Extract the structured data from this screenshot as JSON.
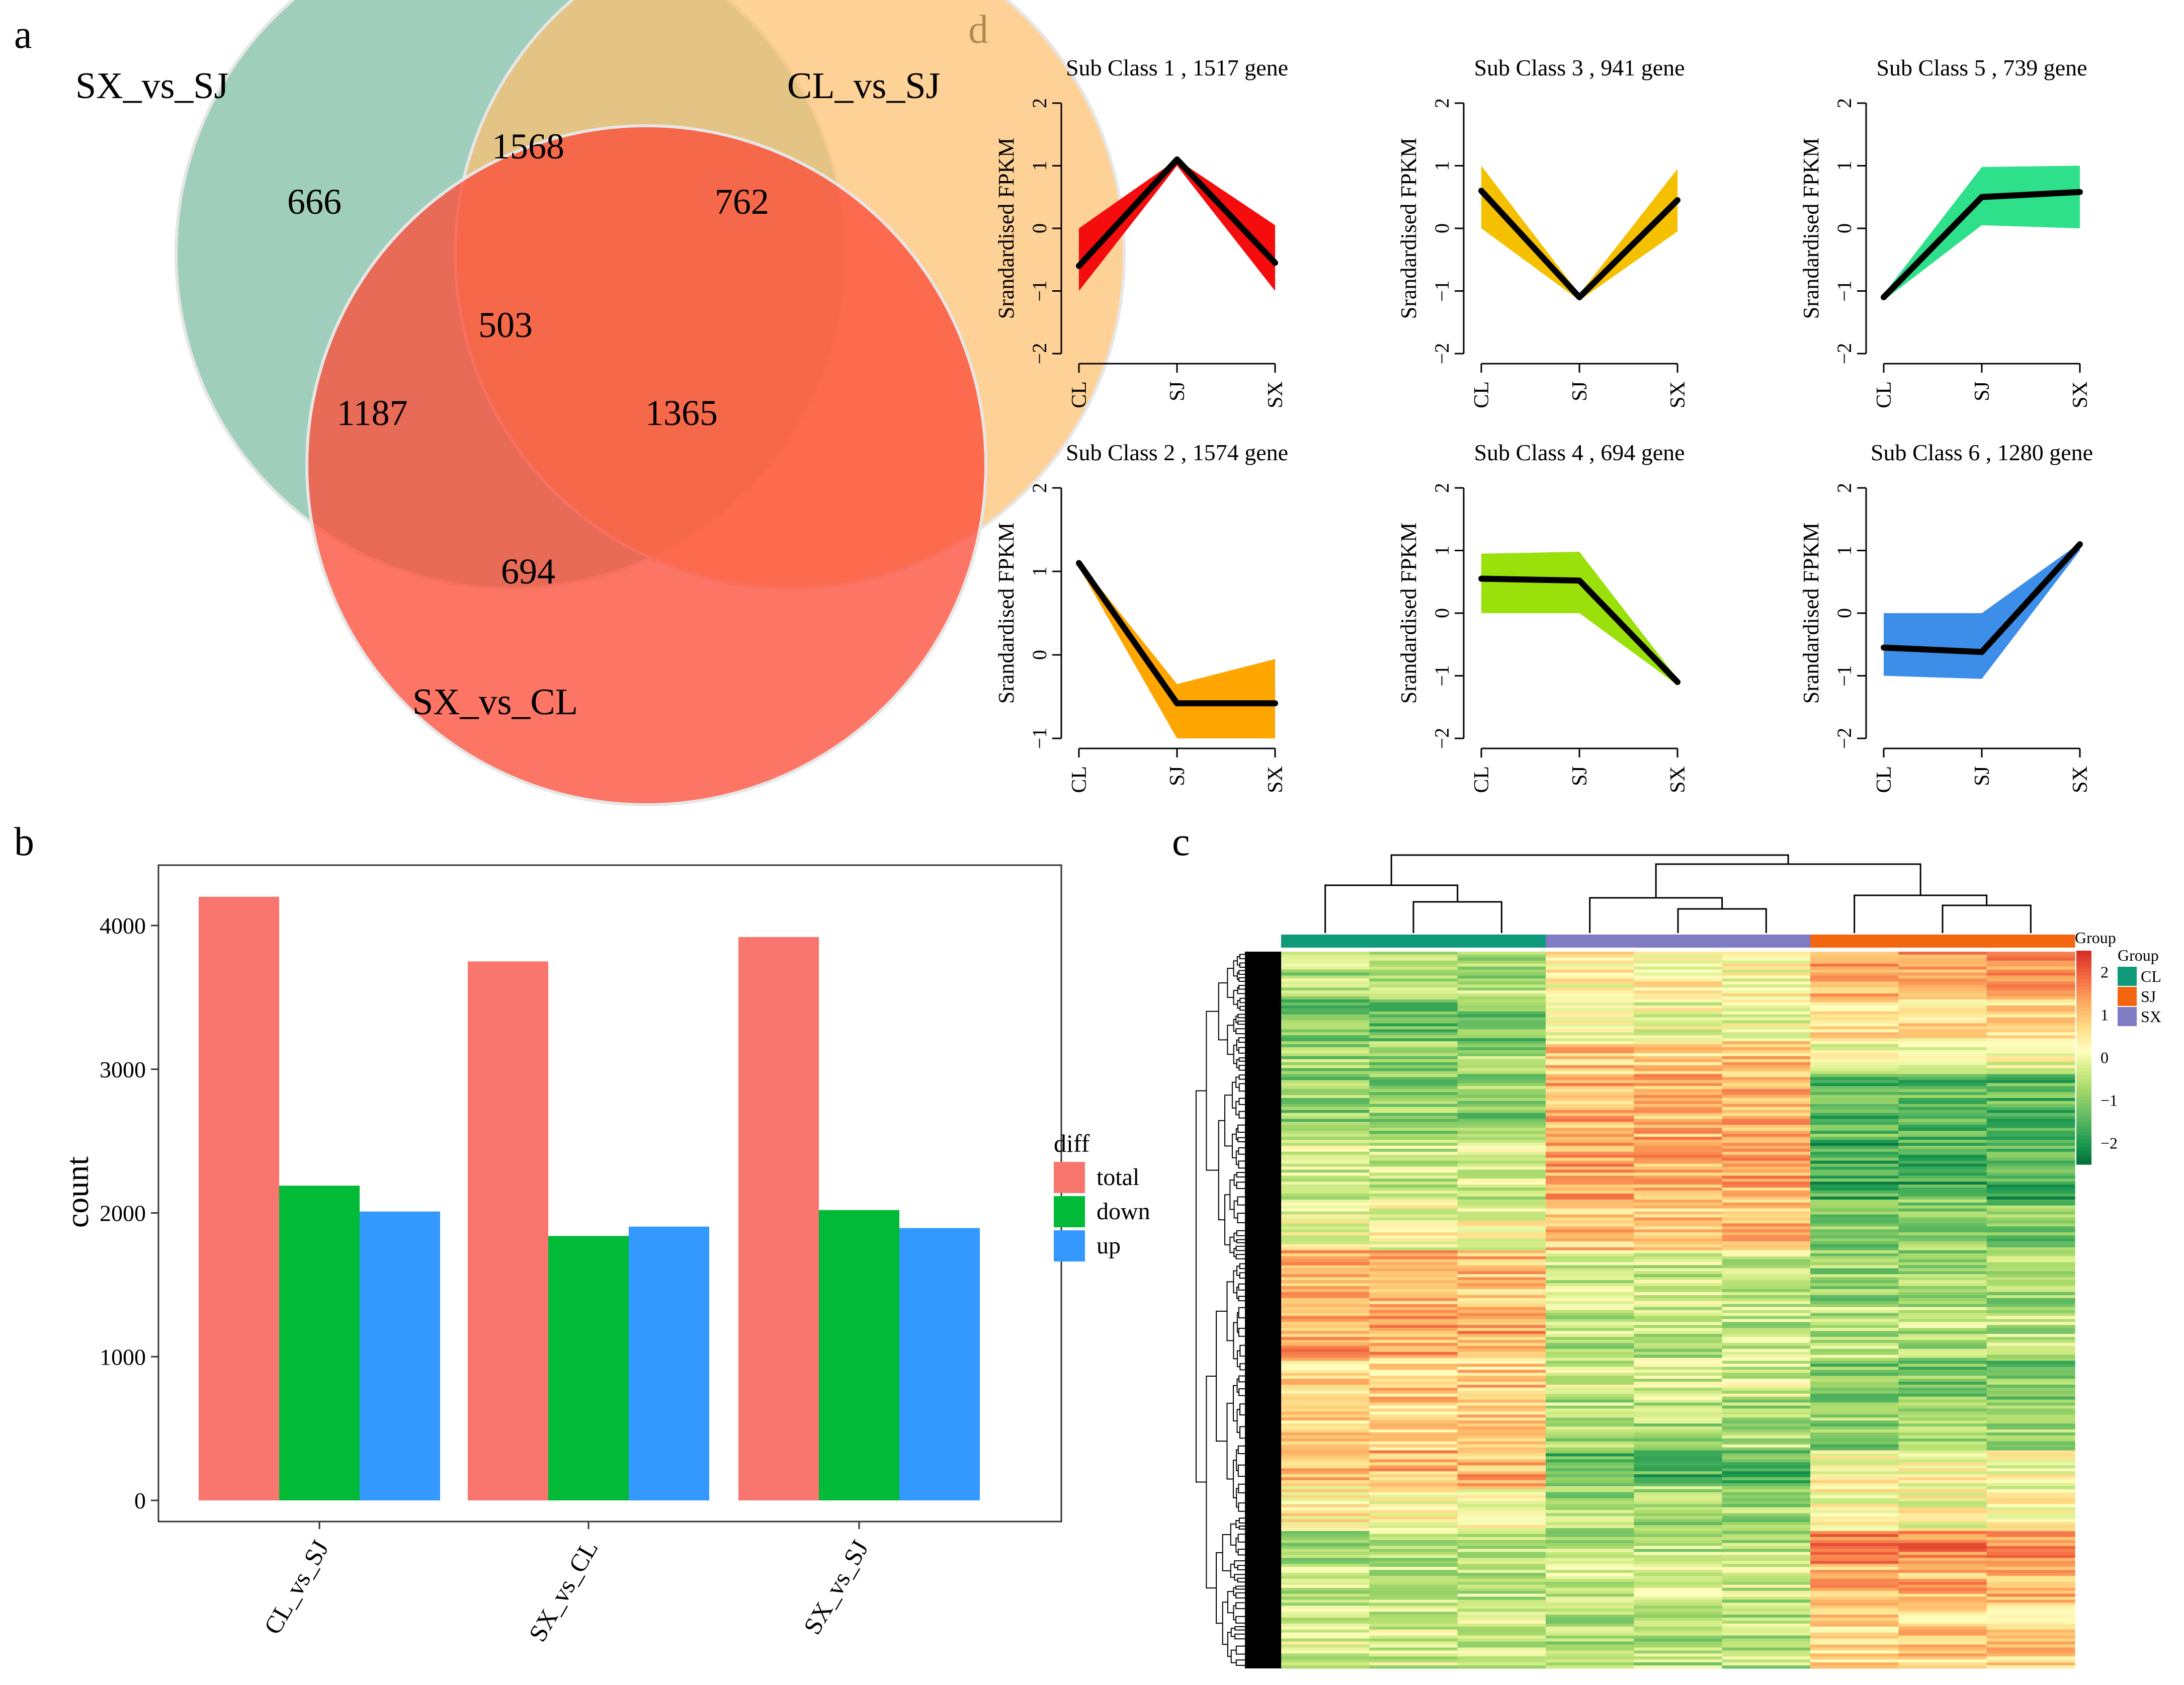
{
  "panel_labels": {
    "a": "a",
    "b": "b",
    "c": "c",
    "d": "d"
  },
  "colors": {
    "venn_sx_sj": "#7fbfa6",
    "venn_cl_sj": "#fdbf6f",
    "venn_sx_cl": "#fb5a46",
    "total": "#f8766d",
    "down": "#00ba38",
    "up": "#3399ff",
    "group_cl": "#0f9b79",
    "group_sj": "#f2660f",
    "group_sx": "#7f7cc4"
  },
  "chart_data": [
    {
      "type": "venn",
      "panel": "a",
      "sets": [
        "SX_vs_SJ",
        "CL_vs_SJ",
        "SX_vs_CL"
      ],
      "regions": {
        "only_SX_vs_SJ": "666",
        "only_CL_vs_SJ": "762",
        "only_SX_vs_CL": "694",
        "SX_vs_SJ_and_CL_vs_SJ": "1568",
        "SX_vs_SJ_and_SX_vs_CL": "1187",
        "CL_vs_SJ_and_SX_vs_CL": "1365",
        "all_three": "503"
      }
    },
    {
      "type": "bar",
      "panel": "b",
      "categories": [
        "CL_vs_SJ",
        "SX_vs_CL",
        "SX_vs_SJ"
      ],
      "series": [
        {
          "name": "total",
          "values": [
            4200,
            3750,
            3920
          ]
        },
        {
          "name": "down",
          "values": [
            2190,
            1840,
            2020
          ]
        },
        {
          "name": "up",
          "values": [
            2010,
            1905,
            1895
          ]
        }
      ],
      "ylabel": "count",
      "ylim": [
        0,
        4400
      ],
      "yticks": [
        0,
        1000,
        2000,
        3000,
        4000
      ],
      "legend_title": "diff",
      "legend_position": "right"
    },
    {
      "type": "heatmap",
      "panel": "c",
      "column_groups": [
        "CL",
        "CL",
        "CL",
        "SX",
        "SX",
        "SX",
        "SJ",
        "SJ",
        "SJ"
      ],
      "legend_title": "Group",
      "legend_title_top": "Group",
      "group_legend": [
        "CL",
        "SJ",
        "SX"
      ],
      "color_scale_ticks": [
        "2",
        "1",
        "0",
        "−1",
        "−2"
      ],
      "color_range": [
        -2.5,
        2.5
      ]
    },
    {
      "type": "line",
      "panel": "d",
      "x": [
        "CL",
        "SJ",
        "SX"
      ],
      "ylabel": "Srandardised FPKM",
      "subplots": [
        {
          "title": "Sub Class  1  , 1517 gene",
          "ylim": [
            -2,
            2
          ],
          "yticks": [
            "−2",
            "−1",
            "0",
            "1",
            "2"
          ],
          "color": "#f50c0c",
          "mean": [
            -0.6,
            1.1,
            -0.55
          ],
          "upper": [
            0.0,
            1.1,
            0.05
          ],
          "lower": [
            -1.0,
            1.0,
            -1.0
          ]
        },
        {
          "title": "Sub Class  3  , 941 gene",
          "ylim": [
            -2,
            2
          ],
          "yticks": [
            "−2",
            "−1",
            "0",
            "1",
            "2"
          ],
          "color": "#f5c000",
          "mean": [
            0.6,
            -1.1,
            0.45
          ],
          "upper": [
            1.0,
            -1.05,
            0.95
          ],
          "lower": [
            0.0,
            -1.15,
            -0.05
          ]
        },
        {
          "title": "Sub Class  5  , 739 gene",
          "ylim": [
            -2,
            2
          ],
          "yticks": [
            "−2",
            "−1",
            "0",
            "1",
            "2"
          ],
          "color": "#2ee08a",
          "mean": [
            -1.1,
            0.5,
            0.58
          ],
          "upper": [
            -1.05,
            0.98,
            1.0
          ],
          "lower": [
            -1.15,
            0.05,
            0.0
          ]
        },
        {
          "title": "Sub Class  2  , 1574 gene",
          "ylim": [
            -1,
            2
          ],
          "yticks": [
            "−1",
            "0",
            "1",
            "2"
          ],
          "color": "#ffa500",
          "mean": [
            1.1,
            -0.58,
            -0.58
          ],
          "upper": [
            1.12,
            -0.35,
            -0.05
          ],
          "lower": [
            1.05,
            -1.0,
            -1.0
          ]
        },
        {
          "title": "Sub Class  4  , 694 gene",
          "ylim": [
            -2,
            2
          ],
          "yticks": [
            "−2",
            "−1",
            "0",
            "1",
            "2"
          ],
          "color": "#9ae00a",
          "mean": [
            0.55,
            0.52,
            -1.1
          ],
          "upper": [
            0.95,
            0.98,
            -1.05
          ],
          "lower": [
            0.0,
            0.0,
            -1.15
          ]
        },
        {
          "title": "Sub Class  6  , 1280 gene",
          "ylim": [
            -2,
            2
          ],
          "yticks": [
            "−2",
            "−1",
            "0",
            "1",
            "2"
          ],
          "color": "#3d8ee8",
          "mean": [
            -0.55,
            -0.62,
            1.1
          ],
          "upper": [
            0.0,
            0.0,
            1.12
          ],
          "lower": [
            -1.0,
            -1.05,
            1.0
          ]
        }
      ]
    }
  ]
}
